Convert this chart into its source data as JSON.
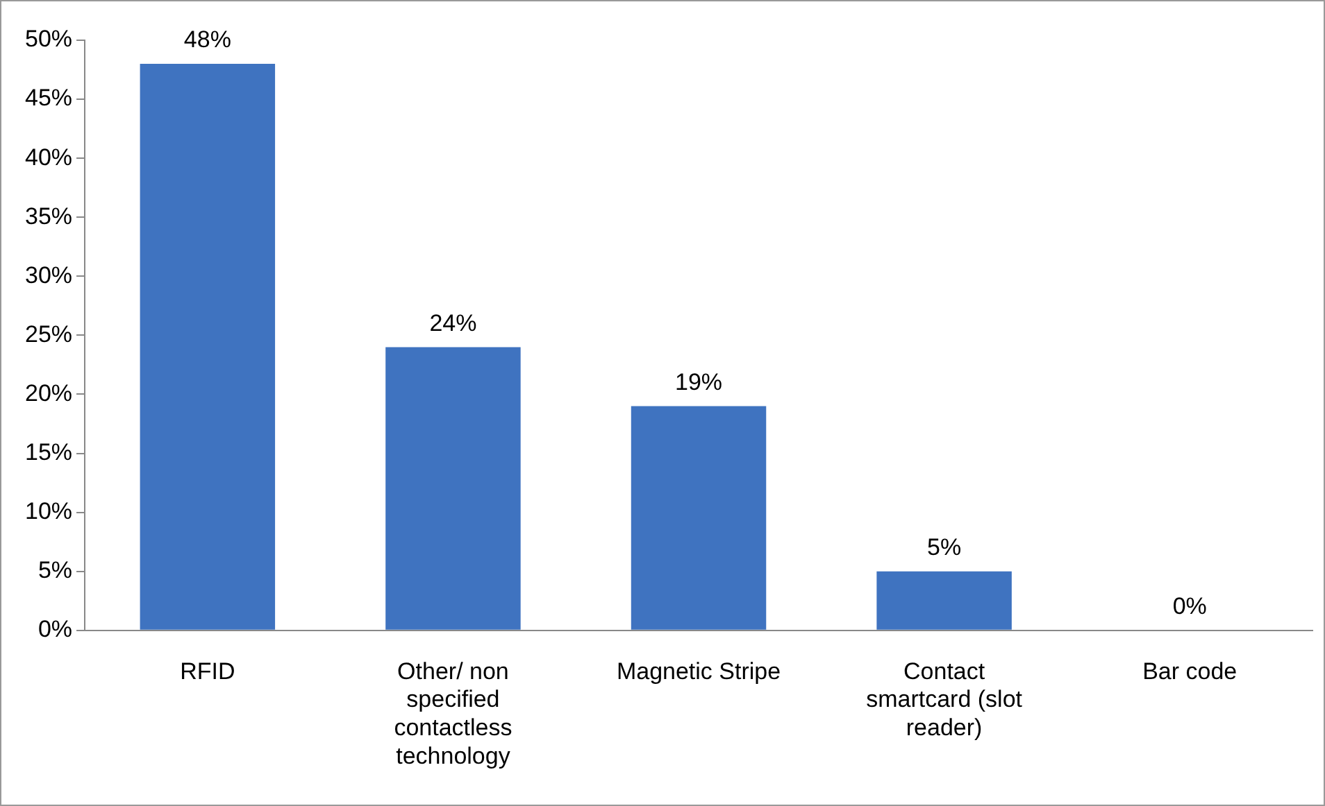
{
  "chart_data": {
    "type": "bar",
    "categories": [
      "RFID",
      "Other/ non specified contactless technology",
      "Magnetic Stripe",
      "Contact smartcard (slot reader)",
      "Bar code"
    ],
    "values": [
      48,
      24,
      19,
      5,
      0
    ],
    "value_labels": [
      "48%",
      "24%",
      "19%",
      "5%",
      "0%"
    ],
    "color": "#3f73c0",
    "ylim": [
      0,
      50
    ],
    "yticks": [
      {
        "value": 0,
        "label": "0%"
      },
      {
        "value": 5,
        "label": "5%"
      },
      {
        "value": 10,
        "label": "10%"
      },
      {
        "value": 15,
        "label": "15%"
      },
      {
        "value": 20,
        "label": "20%"
      },
      {
        "value": 25,
        "label": "25%"
      },
      {
        "value": 30,
        "label": "30%"
      },
      {
        "value": 35,
        "label": "35%"
      },
      {
        "value": 40,
        "label": "40%"
      },
      {
        "value": 45,
        "label": "45%"
      },
      {
        "value": 50,
        "label": "50%"
      }
    ],
    "grid": false,
    "legend": false
  }
}
